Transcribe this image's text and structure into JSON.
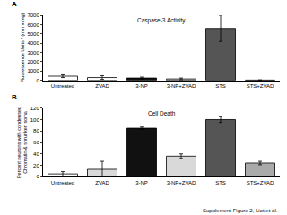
{
  "chart_data": [
    {
      "type": "bar",
      "panel": "A",
      "title": "Caspase-3 Activity",
      "ylabel": "Fluorescence Units / (min x mg)",
      "categories": [
        "Untreated",
        "ZVAD",
        "3-NP",
        "3-NP+ZVAD",
        "STS",
        "STS+ZVAD"
      ],
      "values": [
        450,
        300,
        250,
        150,
        5600,
        30
      ],
      "errors": [
        150,
        200,
        100,
        100,
        1400,
        20
      ],
      "colors": [
        "#ffffff",
        "#ffffff",
        "#111111",
        "#d9d9d9",
        "#555555",
        "#aaaaaa"
      ],
      "ylim": [
        0,
        7000
      ],
      "yticks": [
        0,
        1000,
        2000,
        3000,
        4000,
        5000,
        6000,
        7000
      ],
      "grid": false
    },
    {
      "type": "bar",
      "panel": "B",
      "title": "Cell Death",
      "ylabel": "Percent neurons with condensed Chromatin & shrunken soma",
      "categories": [
        "Untreated",
        "ZVAD",
        "3-NP",
        "3-NP+ZVAD",
        "STS",
        "STS+ZVAD"
      ],
      "values": [
        5,
        13,
        85,
        36,
        100,
        24
      ],
      "errors": [
        4,
        14,
        2,
        4,
        5,
        3
      ],
      "colors": [
        "#ffffff",
        "#d9d9d9",
        "#111111",
        "#d9d9d9",
        "#555555",
        "#aaaaaa"
      ],
      "ylim": [
        0,
        120
      ],
      "yticks": [
        0,
        20,
        40,
        60,
        80,
        100,
        120
      ],
      "grid": false
    }
  ],
  "caption": "Supplement Figure 2, Liot et al."
}
